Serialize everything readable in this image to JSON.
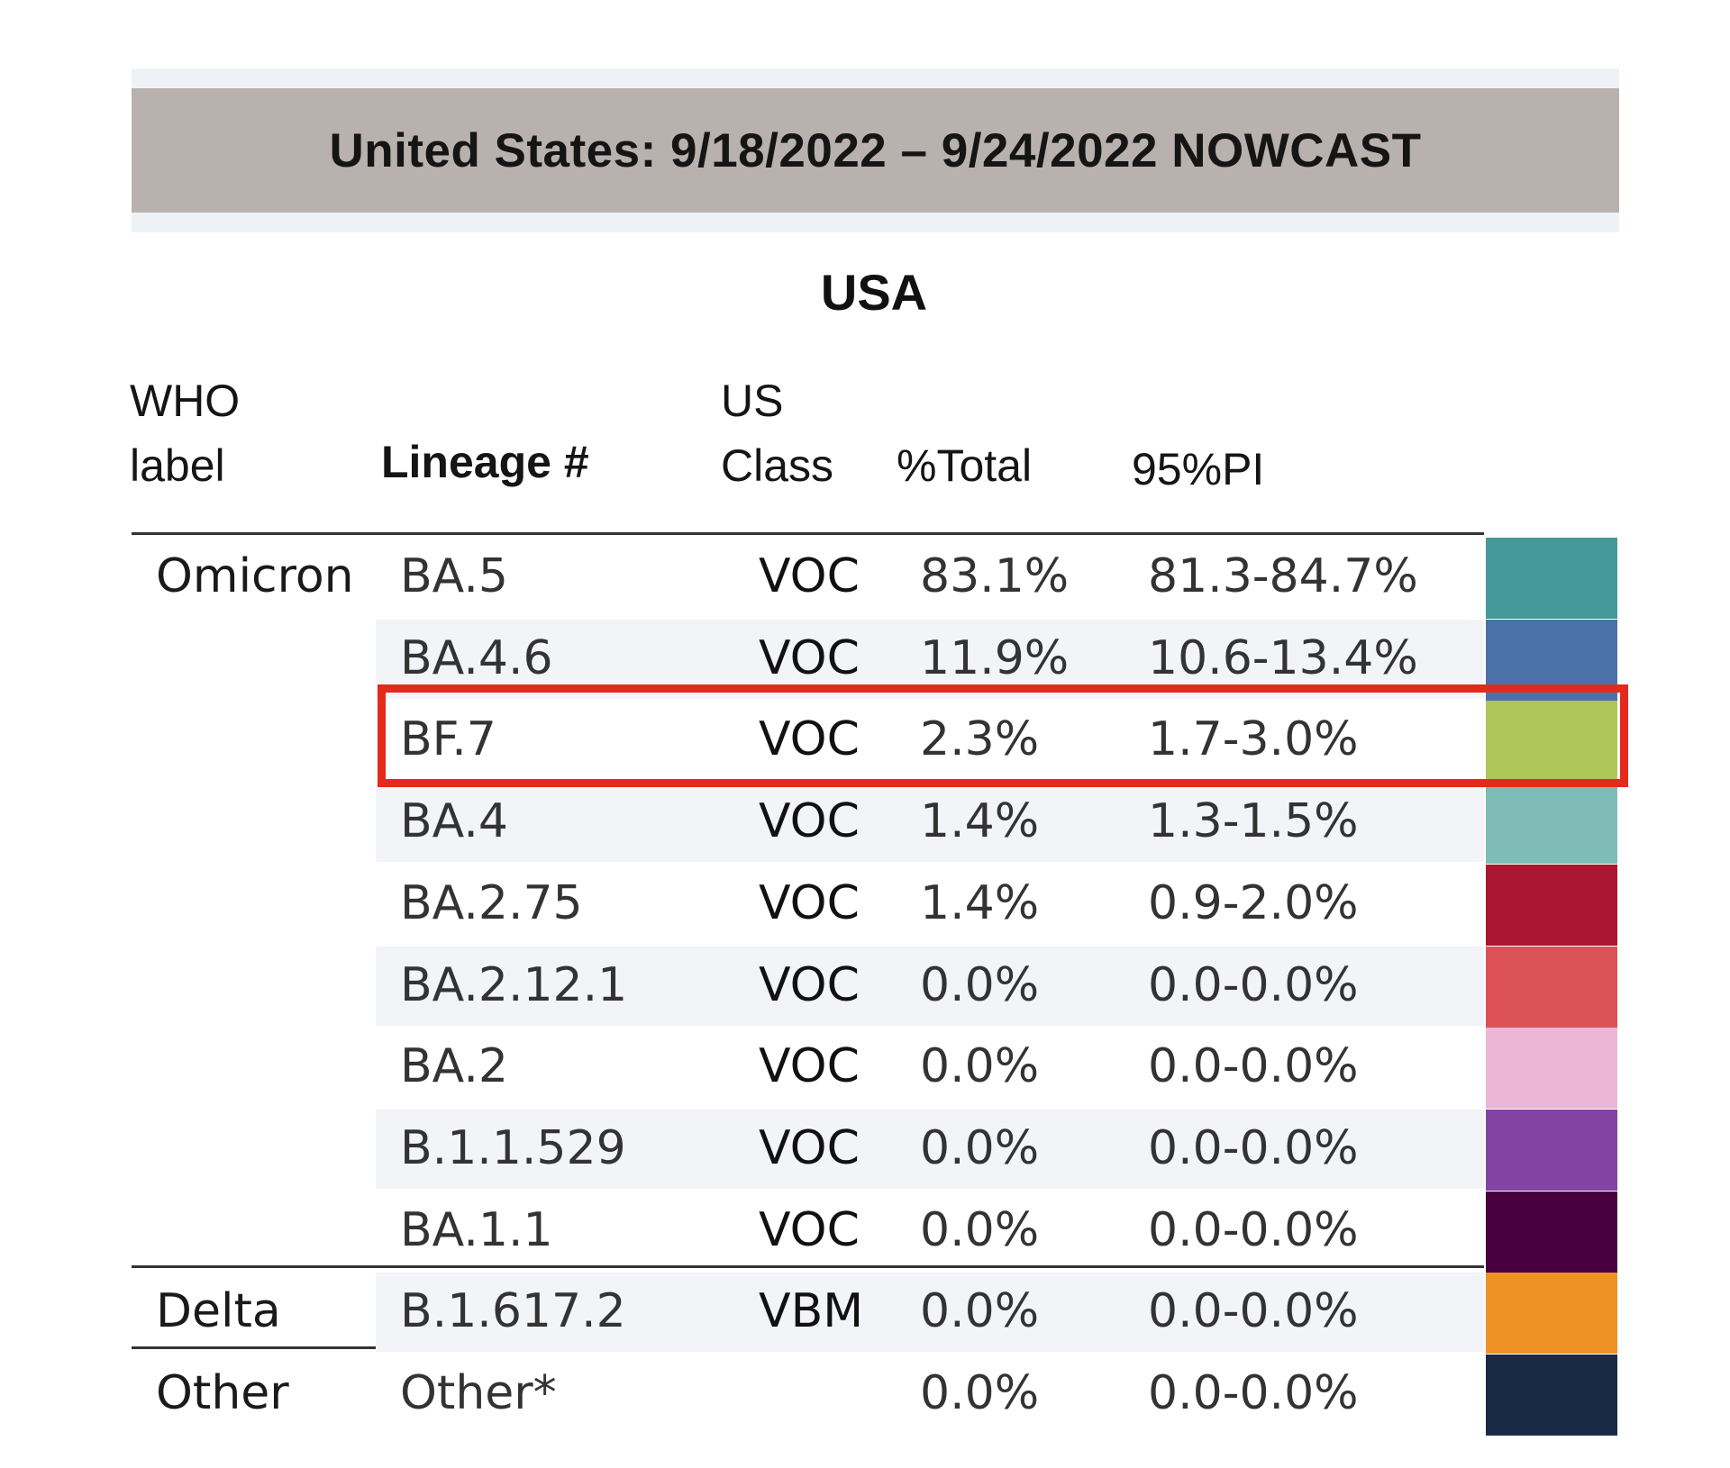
{
  "title": "United States: 9/18/2022 – 9/24/2022 NOWCAST",
  "region": "USA",
  "headers": {
    "who_line1": "WHO",
    "who_line2": "label",
    "lineage": "Lineage #",
    "class_line1": "US",
    "class_line2": "Class",
    "pct_total": "%Total",
    "pi": "95%PI"
  },
  "highlighted_lineage": "BF.7",
  "rows": [
    {
      "who": "Omicron",
      "lineage": "BA.5",
      "class": "VOC",
      "pct": "83.1%",
      "pi": "81.3-84.7%",
      "color": "#45999a"
    },
    {
      "who": "",
      "lineage": "BA.4.6",
      "class": "VOC",
      "pct": "11.9%",
      "pi": "10.6-13.4%",
      "color": "#4a72a8"
    },
    {
      "who": "",
      "lineage": "BF.7",
      "class": "VOC",
      "pct": "2.3%",
      "pi": "1.7-3.0%",
      "color": "#afc658"
    },
    {
      "who": "",
      "lineage": "BA.4",
      "class": "VOC",
      "pct": "1.4%",
      "pi": "1.3-1.5%",
      "color": "#7fbcb8"
    },
    {
      "who": "",
      "lineage": "BA.2.75",
      "class": "VOC",
      "pct": "1.4%",
      "pi": "0.9-2.0%",
      "color": "#a8172f"
    },
    {
      "who": "",
      "lineage": "BA.2.12.1",
      "class": "VOC",
      "pct": "0.0%",
      "pi": "0.0-0.0%",
      "color": "#dc5257"
    },
    {
      "who": "",
      "lineage": "BA.2",
      "class": "VOC",
      "pct": "0.0%",
      "pi": "0.0-0.0%",
      "color": "#ecb6d6"
    },
    {
      "who": "",
      "lineage": "B.1.1.529",
      "class": "VOC",
      "pct": "0.0%",
      "pi": "0.0-0.0%",
      "color": "#8443a2"
    },
    {
      "who": "",
      "lineage": "BA.1.1",
      "class": "VOC",
      "pct": "0.0%",
      "pi": "0.0-0.0%",
      "color": "#48003f"
    },
    {
      "who": "Delta",
      "lineage": "B.1.617.2",
      "class": "VBM",
      "pct": "0.0%",
      "pi": "0.0-0.0%",
      "color": "#ef9226"
    },
    {
      "who": "Other",
      "lineage": "Other*",
      "class": "",
      "pct": "0.0%",
      "pi": "0.0-0.0%",
      "color": "#172b47"
    }
  ]
}
